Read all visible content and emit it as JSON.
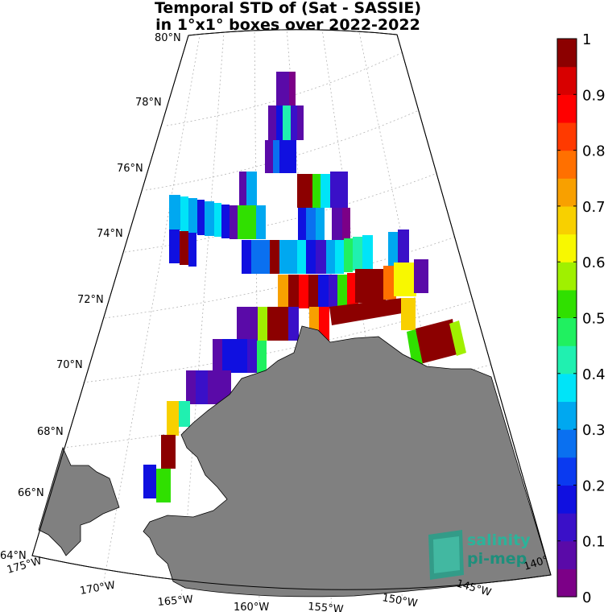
{
  "title": {
    "line1": "Temporal STD of (Sat - SASSIE)",
    "line2": "in 1°x1° boxes over 2022-2022"
  },
  "map": {
    "projection": "polar-stereographic-sector",
    "lon_range": [
      -175,
      -140
    ],
    "lat_range": [
      64,
      80
    ],
    "land_color": "#808080",
    "latitude_labels": [
      "64°N",
      "66°N",
      "68°N",
      "70°N",
      "72°N",
      "74°N",
      "76°N",
      "78°N",
      "80°N"
    ],
    "longitude_labels": [
      "175°W",
      "170°W",
      "165°W",
      "160°W",
      "155°W",
      "150°W",
      "145°W",
      "140°"
    ]
  },
  "colorbar": {
    "min": 0,
    "max": 1,
    "tick_labels": [
      "0",
      "0.1",
      "0.2",
      "0.3",
      "0.4",
      "0.5",
      "0.6",
      "0.7",
      "0.8",
      "0.9",
      "1"
    ],
    "colors": [
      "#7c0087",
      "#5a0aa8",
      "#3a10c8",
      "#1010e0",
      "#0a3af0",
      "#0a70f0",
      "#00a8f0",
      "#00e4f8",
      "#20f0b0",
      "#20f060",
      "#30e000",
      "#a0f000",
      "#f8f800",
      "#f8d000",
      "#f8a000",
      "#ff7000",
      "#ff3a00",
      "#ff0000",
      "#d80000",
      "#8c0000"
    ]
  },
  "logo": {
    "line1": "salinity",
    "line2": "pi-mep"
  }
}
